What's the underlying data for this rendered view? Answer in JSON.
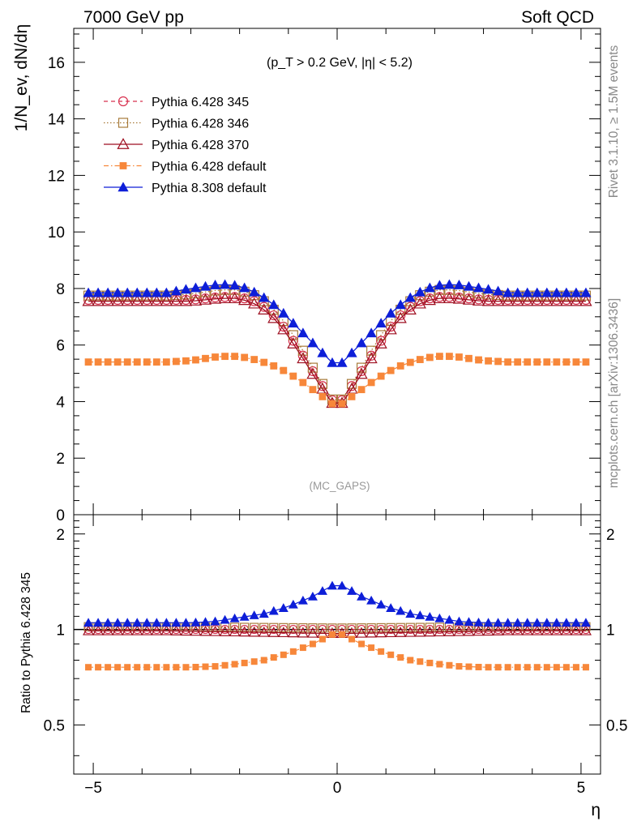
{
  "header": {
    "left": "7000 GeV pp",
    "right": "Soft QCD"
  },
  "side": {
    "top": "Rivet 3.1.10, ≥ 1.5M events",
    "bottom": "mcplots.cern.ch [arXiv:1306.3436]"
  },
  "chart_data": [
    {
      "type": "line",
      "ylabel": "1/N_ev, dN/dη",
      "annotation": "(p_T > 0.2 GeV, |η| < 5.2)",
      "watermark": "(MC_GAPS)",
      "xlim": [
        -5.4,
        5.4
      ],
      "ylim": [
        0,
        17.2
      ],
      "yticks": [
        "0",
        "2",
        "4",
        "6",
        "8",
        "10",
        "12",
        "14",
        "16"
      ],
      "legend_position": "top-left",
      "x_range": [
        -5.1,
        5.1
      ],
      "bins": 52,
      "series": [
        {
          "name": "Pythia 6.428 345",
          "color": "#d8314f",
          "marker": "circle-open",
          "dash": "5,4",
          "anchors": [
            [
              0,
              3.8
            ],
            [
              0.4,
              4.8
            ],
            [
              0.8,
              5.9
            ],
            [
              1.2,
              6.9
            ],
            [
              1.6,
              7.5
            ],
            [
              2.0,
              7.7
            ],
            [
              2.4,
              7.7
            ],
            [
              3.0,
              7.6
            ],
            [
              3.5,
              7.6
            ]
          ]
        },
        {
          "name": "Pythia 6.428 346",
          "color": "#a87b3b",
          "marker": "square-open",
          "dash": "1.5,2.5",
          "anchors": [
            [
              0,
              3.8
            ],
            [
              0.4,
              4.9
            ],
            [
              0.8,
              6.1
            ],
            [
              1.2,
              7.1
            ],
            [
              1.6,
              7.7
            ],
            [
              2.0,
              7.95
            ],
            [
              2.4,
              7.95
            ],
            [
              3.0,
              7.8
            ],
            [
              3.5,
              7.75
            ]
          ]
        },
        {
          "name": "Pythia 6.428 370",
          "color": "#9e0f20",
          "marker": "triangle-open",
          "dash": "",
          "anchors": [
            [
              0,
              3.7
            ],
            [
              0.4,
              4.7
            ],
            [
              0.8,
              5.8
            ],
            [
              1.2,
              6.8
            ],
            [
              1.6,
              7.4
            ],
            [
              2.0,
              7.65
            ],
            [
              2.4,
              7.65
            ],
            [
              3.0,
              7.55
            ],
            [
              3.5,
              7.55
            ]
          ]
        },
        {
          "name": "Pythia 6.428 default",
          "color": "#f7873a",
          "marker": "square-filled",
          "dash": "6,3,1.5,3",
          "anchors": [
            [
              0,
              3.8
            ],
            [
              0.4,
              4.3
            ],
            [
              0.8,
              4.8
            ],
            [
              1.2,
              5.2
            ],
            [
              1.6,
              5.45
            ],
            [
              2.0,
              5.6
            ],
            [
              2.4,
              5.6
            ],
            [
              3.0,
              5.45
            ],
            [
              3.5,
              5.4
            ]
          ]
        },
        {
          "name": "Pythia 8.308 default",
          "color": "#0d1ed8",
          "marker": "triangle-filled",
          "dash": "",
          "anchors": [
            [
              0,
              5.2
            ],
            [
              0.4,
              5.9
            ],
            [
              0.8,
              6.6
            ],
            [
              1.2,
              7.3
            ],
            [
              1.6,
              7.8
            ],
            [
              2.0,
              8.1
            ],
            [
              2.4,
              8.15
            ],
            [
              3.0,
              8.0
            ],
            [
              3.5,
              7.85
            ]
          ]
        }
      ]
    },
    {
      "type": "line",
      "ylabel": "Ratio to Pythia 6.428 345",
      "xlabel": "η",
      "xticks": [
        "−5",
        "0",
        "5"
      ],
      "yticks": [
        "0.5",
        "1",
        "2"
      ],
      "ylim": [
        0.35,
        2.3
      ],
      "log_y": true,
      "reference": 1.0,
      "ratios": [
        {
          "name": "Pythia 6.428 345",
          "anchors": [
            [
              0,
              1.0
            ],
            [
              3.5,
              1.0
            ]
          ]
        },
        {
          "name": "Pythia 6.428 346",
          "anchors": [
            [
              0,
              1.01
            ],
            [
              3.5,
              1.02
            ]
          ]
        },
        {
          "name": "Pythia 6.428 370",
          "anchors": [
            [
              0,
              0.97
            ],
            [
              3.5,
              0.99
            ]
          ]
        },
        {
          "name": "Pythia 6.428 default",
          "anchors": [
            [
              0,
              0.98
            ],
            [
              0.5,
              0.9
            ],
            [
              1.0,
              0.84
            ],
            [
              1.5,
              0.8
            ],
            [
              2.0,
              0.78
            ],
            [
              2.5,
              0.765
            ],
            [
              3.0,
              0.76
            ],
            [
              3.5,
              0.76
            ]
          ]
        },
        {
          "name": "Pythia 8.308 default",
          "anchors": [
            [
              0,
              1.4
            ],
            [
              0.5,
              1.27
            ],
            [
              1.0,
              1.18
            ],
            [
              1.5,
              1.12
            ],
            [
              2.0,
              1.09
            ],
            [
              2.5,
              1.06
            ],
            [
              3.0,
              1.05
            ],
            [
              3.5,
              1.05
            ]
          ]
        }
      ]
    }
  ]
}
